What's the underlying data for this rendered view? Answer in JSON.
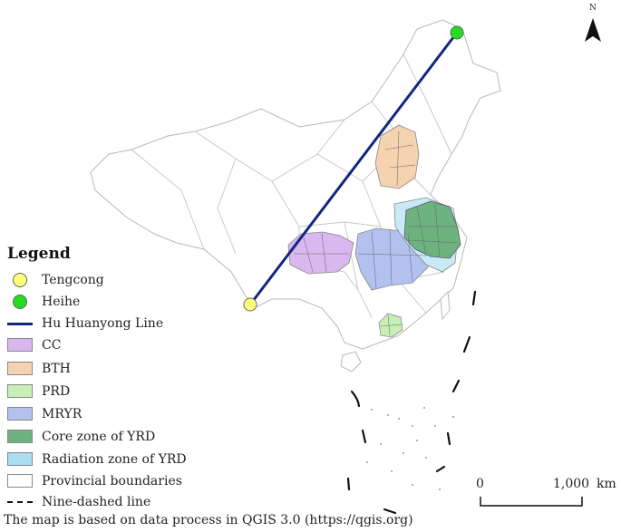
{
  "legend": {
    "title": "Legend",
    "items": [
      {
        "label": "Tengcong",
        "kind": "point",
        "color": "#ffff7a"
      },
      {
        "label": "Heihe",
        "kind": "point",
        "color": "#22dd22"
      },
      {
        "label": "Hu Huanyong Line",
        "kind": "line",
        "color": "#12277f"
      },
      {
        "label": "CC",
        "kind": "fill",
        "color": "#d8b8ee"
      },
      {
        "label": "BTH",
        "kind": "fill",
        "color": "#f5d3b0"
      },
      {
        "label": "PRD",
        "kind": "fill",
        "color": "#c7efb6"
      },
      {
        "label": "MRYR",
        "kind": "fill",
        "color": "#b3c1ee"
      },
      {
        "label": "Core zone of YRD",
        "kind": "fill",
        "color": "#6eb27f"
      },
      {
        "label": "Radiation zone of YRD",
        "kind": "fill",
        "color": "#aadef0"
      },
      {
        "label": "Provincial boundaries",
        "kind": "fill",
        "color": "#ffffff"
      },
      {
        "label": "Nine-dashed line",
        "kind": "dash",
        "color": "#111111"
      }
    ]
  },
  "north_arrow": {
    "label": "N"
  },
  "scale_bar": {
    "start_label": "0",
    "end_label": "1,000",
    "unit": "km"
  },
  "footer": "The map is based  on data process in QGIS 3.0 (https://qgis.org)"
}
